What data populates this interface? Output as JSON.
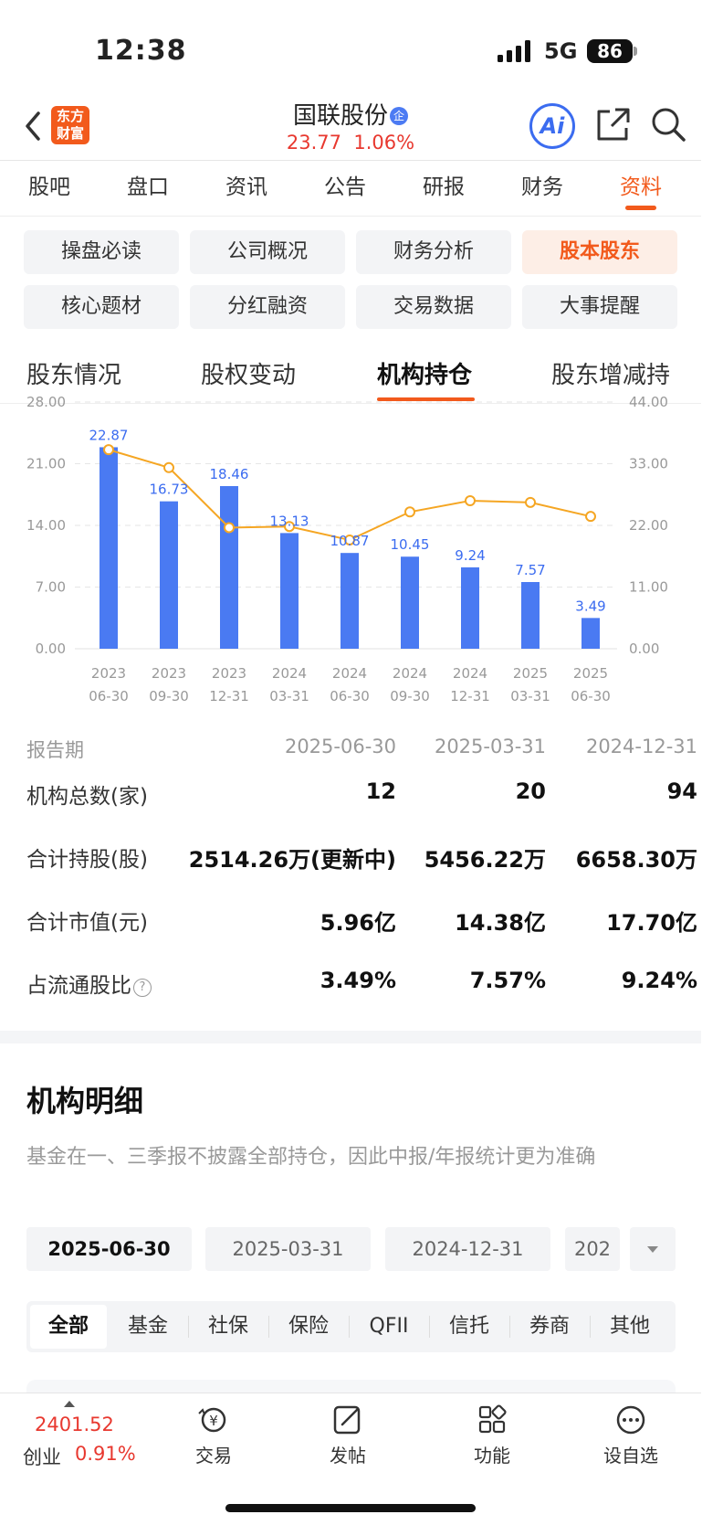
{
  "status": {
    "time": "12:38",
    "network": "5G",
    "battery": "86"
  },
  "header": {
    "logo_line1": "东方",
    "logo_line2": "财富",
    "stock_name": "国联股份",
    "badge": "企",
    "price": "23.77",
    "change": "1.06%",
    "ai_label": "Ai"
  },
  "main_tabs": [
    "股吧",
    "盘口",
    "资讯",
    "公告",
    "研报",
    "财务",
    "资料"
  ],
  "sub_buttons": [
    "操盘必读",
    "公司概况",
    "财务分析",
    "股本股东",
    "核心题材",
    "分红融资",
    "交易数据",
    "大事提醒"
  ],
  "section_tabs": [
    "股东情况",
    "股权变动",
    "机构持仓",
    "股东增减持"
  ],
  "chart_data": {
    "type": "bar",
    "categories": [
      "2023 06-30",
      "2023 09-30",
      "2023 12-31",
      "2024 03-31",
      "2024 06-30",
      "2024 09-30",
      "2024 12-31",
      "2025 03-31",
      "2025 06-30"
    ],
    "x_year": [
      "2023",
      "2023",
      "2023",
      "2024",
      "2024",
      "2024",
      "2024",
      "2025",
      "2025"
    ],
    "x_date": [
      "06-30",
      "09-30",
      "12-31",
      "03-31",
      "06-30",
      "09-30",
      "12-31",
      "03-31",
      "06-30"
    ],
    "bar_values": [
      22.87,
      16.73,
      18.46,
      13.13,
      10.87,
      10.45,
      9.24,
      7.57,
      3.49
    ],
    "bar_labels": [
      "22.87",
      "16.73",
      "18.46",
      "13.13",
      "10.87",
      "10.45",
      "9.24",
      "7.57",
      "3.49"
    ],
    "line_values": [
      35.5,
      32.3,
      21.6,
      21.8,
      19.4,
      24.4,
      26.4,
      26.1,
      23.6
    ],
    "left_ticks": [
      "28.00",
      "21.00",
      "14.00",
      "7.00",
      "0.00"
    ],
    "right_ticks": [
      "44.00",
      "33.00",
      "22.00",
      "11.00",
      "0.00"
    ],
    "left_ylim": [
      0,
      28
    ],
    "right_ylim": [
      0,
      44
    ],
    "bar_color": "#4a7af2",
    "line_color": "#f5a623",
    "label_color": "#3b6cf0",
    "grid": true
  },
  "summary": {
    "head": {
      "label": "报告期",
      "c1": "2025-06-30",
      "c2": "2025-03-31",
      "c3": "2024-12-31"
    },
    "rows": [
      {
        "label": "机构总数(家)",
        "c1": "12",
        "c2": "20",
        "c3": "94"
      },
      {
        "label": "合计持股(股)",
        "c1": "2514.26万(更新中)",
        "c2": "5456.22万",
        "c3": "6658.30万"
      },
      {
        "label": "合计市值(元)",
        "c1": "5.96亿",
        "c2": "14.38亿",
        "c3": "17.70亿"
      },
      {
        "label": "占流通股比",
        "c1": "3.49%",
        "c2": "7.57%",
        "c3": "9.24%"
      }
    ]
  },
  "detail": {
    "title": "机构明细",
    "note": "基金在一、三季报不披露全部持仓，因此中报/年报统计更为准确",
    "dates": [
      "2025-06-30",
      "2025-03-31",
      "2024-12-31",
      "202"
    ],
    "types": [
      "全部",
      "基金",
      "社保",
      "保险",
      "QFII",
      "信托",
      "券商",
      "其他"
    ]
  },
  "bottom": {
    "index_value": "2401.52",
    "index_name": "创业",
    "index_change": "0.91%",
    "nav": [
      "交易",
      "发帖",
      "功能",
      "设自选"
    ]
  }
}
